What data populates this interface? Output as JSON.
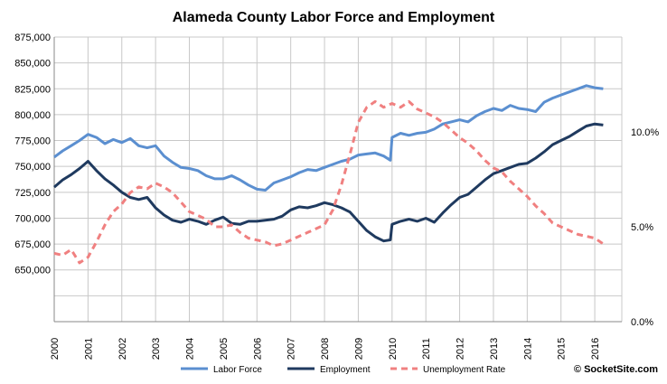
{
  "chart_data": {
    "type": "line",
    "title": "Alameda County Labor Force and Employment",
    "x_start_year": 2000,
    "x_ticks": [
      "2000",
      "2001",
      "2002",
      "2003",
      "2004",
      "2005",
      "2006",
      "2007",
      "2008",
      "2009",
      "2010",
      "2011",
      "2012",
      "2013",
      "2014",
      "2015",
      "2016"
    ],
    "y_left": {
      "ticks": [
        "875,000",
        "850,000",
        "825,000",
        "800,000",
        "775,000",
        "750,000",
        "725,000",
        "700,000",
        "675,000",
        "650,000"
      ],
      "range": [
        600000,
        875000
      ]
    },
    "y_right": {
      "ticks": [
        "10.0%",
        "5.0%",
        "0.0%"
      ],
      "range": [
        0,
        15
      ]
    },
    "grid": true,
    "legend_position": "bottom",
    "credit": "© SocketSite.com",
    "series": [
      {
        "name": "Labor Force",
        "axis": "left",
        "color": "#5b8fd0",
        "style": "solid",
        "x": [
          2000.0,
          2000.25,
          2000.5,
          2000.75,
          2001.0,
          2001.25,
          2001.5,
          2001.75,
          2002.0,
          2002.25,
          2002.5,
          2002.75,
          2003.0,
          2003.25,
          2003.5,
          2003.75,
          2004.0,
          2004.25,
          2004.5,
          2004.75,
          2005.0,
          2005.25,
          2005.5,
          2005.75,
          2006.0,
          2006.25,
          2006.5,
          2006.75,
          2007.0,
          2007.25,
          2007.5,
          2007.75,
          2008.0,
          2008.25,
          2008.5,
          2008.75,
          2009.0,
          2009.25,
          2009.5,
          2009.75,
          2009.95,
          2010.0,
          2010.25,
          2010.5,
          2010.75,
          2011.0,
          2011.25,
          2011.5,
          2011.75,
          2012.0,
          2012.25,
          2012.5,
          2012.75,
          2013.0,
          2013.25,
          2013.5,
          2013.75,
          2014.0,
          2014.25,
          2014.5,
          2014.75,
          2015.0,
          2015.25,
          2015.5,
          2015.75,
          2016.0,
          2016.25
        ],
        "values": [
          759000,
          765000,
          770000,
          775000,
          781000,
          778000,
          772000,
          776000,
          773000,
          777000,
          770000,
          768000,
          770000,
          760000,
          754000,
          749000,
          748000,
          746000,
          741000,
          738000,
          738000,
          741000,
          737000,
          732000,
          728000,
          727000,
          734000,
          737000,
          740000,
          744000,
          747000,
          746000,
          749000,
          752000,
          755000,
          757000,
          761000,
          762000,
          763000,
          760000,
          756000,
          778000,
          782000,
          780000,
          782000,
          783000,
          786000,
          791000,
          793000,
          795000,
          793000,
          799000,
          803000,
          806000,
          804000,
          809000,
          806000,
          805000,
          803000,
          812000,
          816000,
          819000,
          822000,
          825000,
          828000,
          826000,
          825000
        ]
      },
      {
        "name": "Employment",
        "axis": "left",
        "color": "#1f3a5f",
        "style": "solid",
        "x": [
          2000.0,
          2000.25,
          2000.5,
          2000.75,
          2001.0,
          2001.25,
          2001.5,
          2001.75,
          2002.0,
          2002.25,
          2002.5,
          2002.75,
          2003.0,
          2003.25,
          2003.5,
          2003.75,
          2004.0,
          2004.25,
          2004.5,
          2004.75,
          2005.0,
          2005.25,
          2005.5,
          2005.75,
          2006.0,
          2006.25,
          2006.5,
          2006.75,
          2007.0,
          2007.25,
          2007.5,
          2007.75,
          2008.0,
          2008.25,
          2008.5,
          2008.75,
          2009.0,
          2009.25,
          2009.5,
          2009.75,
          2009.95,
          2010.0,
          2010.25,
          2010.5,
          2010.75,
          2011.0,
          2011.25,
          2011.5,
          2011.75,
          2012.0,
          2012.25,
          2012.5,
          2012.75,
          2013.0,
          2013.25,
          2013.5,
          2013.75,
          2014.0,
          2014.25,
          2014.5,
          2014.75,
          2015.0,
          2015.25,
          2015.5,
          2015.75,
          2016.0,
          2016.25
        ],
        "values": [
          730000,
          737000,
          742000,
          748000,
          755000,
          746000,
          738000,
          732000,
          725000,
          720000,
          718000,
          720000,
          710000,
          703000,
          698000,
          696000,
          699000,
          697000,
          694000,
          698000,
          701000,
          695000,
          694000,
          697000,
          697000,
          698000,
          699000,
          702000,
          708000,
          711000,
          710000,
          712000,
          715000,
          713000,
          710000,
          706000,
          697000,
          688000,
          682000,
          678000,
          679000,
          694000,
          697000,
          699000,
          697000,
          700000,
          696000,
          705000,
          713000,
          720000,
          723000,
          730000,
          737000,
          743000,
          746000,
          749000,
          752000,
          753000,
          758000,
          764000,
          771000,
          775000,
          779000,
          784000,
          789000,
          791000,
          790000
        ]
      },
      {
        "name": "Unemployment Rate",
        "axis": "right",
        "color": "#f08080",
        "style": "dashed",
        "x": [
          2000.0,
          2000.25,
          2000.5,
          2000.75,
          2001.0,
          2001.25,
          2001.5,
          2001.75,
          2002.0,
          2002.25,
          2002.5,
          2002.75,
          2003.0,
          2003.25,
          2003.5,
          2003.75,
          2004.0,
          2004.25,
          2004.5,
          2004.75,
          2005.0,
          2005.25,
          2005.5,
          2005.75,
          2006.0,
          2006.25,
          2006.5,
          2006.75,
          2007.0,
          2007.25,
          2007.5,
          2007.75,
          2008.0,
          2008.25,
          2008.5,
          2008.75,
          2009.0,
          2009.25,
          2009.5,
          2009.75,
          2010.0,
          2010.25,
          2010.5,
          2010.75,
          2011.0,
          2011.25,
          2011.5,
          2011.75,
          2012.0,
          2012.25,
          2012.5,
          2012.75,
          2013.0,
          2013.25,
          2013.5,
          2013.75,
          2014.0,
          2014.25,
          2014.5,
          2014.75,
          2015.0,
          2015.25,
          2015.5,
          2015.75,
          2016.0,
          2016.25
        ],
        "values": [
          3.6,
          3.5,
          3.8,
          3.1,
          3.4,
          4.2,
          5.1,
          5.8,
          6.2,
          6.8,
          7.1,
          7.0,
          7.3,
          7.1,
          6.8,
          6.3,
          5.8,
          5.6,
          5.4,
          5.0,
          5.0,
          5.1,
          4.7,
          4.4,
          4.3,
          4.2,
          4.0,
          4.1,
          4.3,
          4.5,
          4.7,
          4.9,
          5.1,
          5.9,
          7.2,
          8.8,
          10.5,
          11.3,
          11.6,
          11.3,
          11.5,
          11.3,
          11.6,
          11.2,
          11.0,
          10.8,
          10.5,
          10.1,
          9.7,
          9.4,
          9.0,
          8.5,
          8.1,
          7.9,
          7.4,
          7.0,
          6.6,
          6.1,
          5.7,
          5.2,
          5.0,
          4.8,
          4.6,
          4.5,
          4.4,
          4.1
        ]
      }
    ]
  }
}
